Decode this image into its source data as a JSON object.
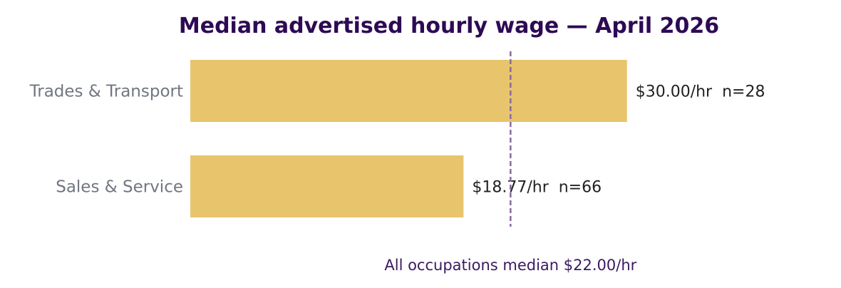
{
  "chart_data": {
    "type": "bar",
    "orientation": "horizontal",
    "title": "Median advertised hourly wage — April 2026",
    "categories": [
      "Trades & Transport",
      "Sales & Service"
    ],
    "values": [
      30.0,
      18.77
    ],
    "value_labels": [
      "$30.00/hr  n=28",
      "$18.77/hr  n=66"
    ],
    "xlim": [
      0,
      33
    ],
    "reference_line": {
      "value": 22.0,
      "label": "All occupations median $22.00/hr"
    },
    "grid": false,
    "legend": "none"
  },
  "colors": {
    "bar": "#E8C46C",
    "title": "#2E0A54",
    "category_label": "#717680",
    "value_label": "#222222",
    "reference_line": "#8A6A9E",
    "reference_label": "#3A1A60"
  }
}
